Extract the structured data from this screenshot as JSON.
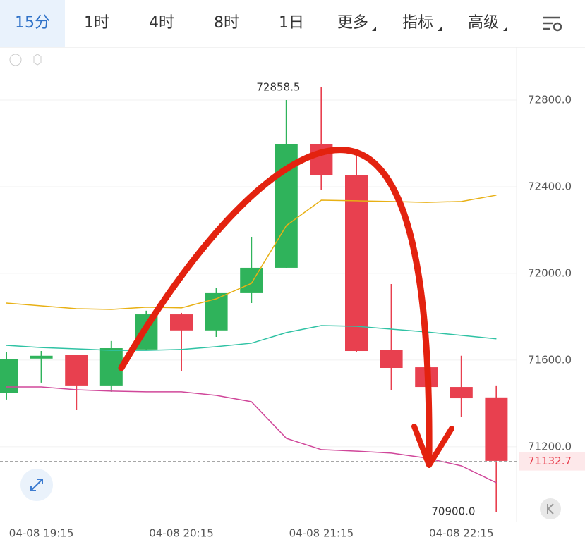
{
  "tabs": [
    "15分",
    "1时",
    "4时",
    "8时",
    "1日",
    "更多",
    "指标",
    "高级"
  ],
  "chart_data": {
    "type": "candlestick",
    "categories": [
      null,
      "04-08 19:15",
      null,
      null,
      null,
      "04-08 20:15",
      null,
      null,
      null,
      "04-08 21:15",
      null,
      null,
      null,
      "04-08 22:15",
      null
    ],
    "open": [
      71450,
      71607,
      71623,
      71483,
      71649,
      71811,
      71737,
      71909,
      72026,
      72595,
      72452,
      71646,
      71567,
      71476,
      71428
    ],
    "high": [
      71636,
      71642,
      71623,
      71688,
      71828,
      71818,
      71932,
      72169,
      72800,
      72858.5,
      72572,
      71951,
      71567,
      71620,
      71483
    ],
    "low": [
      71418,
      71496,
      71369,
      71454,
      71646,
      71548,
      71707,
      71863,
      72026,
      72387,
      71636,
      71463,
      71272,
      71337,
      70900
    ],
    "close": [
      71603,
      71620,
      71483,
      71655,
      71811,
      71737,
      71909,
      72026,
      72595,
      72452,
      71642,
      71564,
      71476,
      71424,
      71135
    ],
    "up_color": "#2fb35b",
    "down_color": "#e8404f",
    "lines": [
      {
        "color": "#e8b014",
        "values": [
          71863,
          71850,
          71837,
          71834,
          71844,
          71841,
          71883,
          71954,
          72221,
          72338,
          72335,
          72332,
          72328,
          72332,
          72361
        ]
      },
      {
        "color": "#2fc2a4",
        "values": [
          71668,
          71658,
          71652,
          71645,
          71645,
          71649,
          71662,
          71678,
          71727,
          71759,
          71756,
          71743,
          71730,
          71714,
          71698
        ]
      },
      {
        "color": "#d0479a",
        "values": [
          71476,
          71476,
          71463,
          71457,
          71454,
          71454,
          71437,
          71408,
          71239,
          71187,
          71180,
          71171,
          71148,
          71112,
          71034
        ]
      }
    ],
    "ylim": [
      70855,
      73034
    ],
    "yticks": [
      {
        "value": 71200,
        "label": "71200.0"
      },
      {
        "value": 71600,
        "label": "71600.0"
      },
      {
        "value": 72000,
        "label": "72000.0"
      },
      {
        "value": 72400,
        "label": "72400.0"
      },
      {
        "value": 72800,
        "label": "72800.0"
      }
    ],
    "grid": true,
    "current_price": 71132.7,
    "high_label": 72858.5,
    "low_label": {
      "value": 70900,
      "label": "70900.0"
    }
  }
}
